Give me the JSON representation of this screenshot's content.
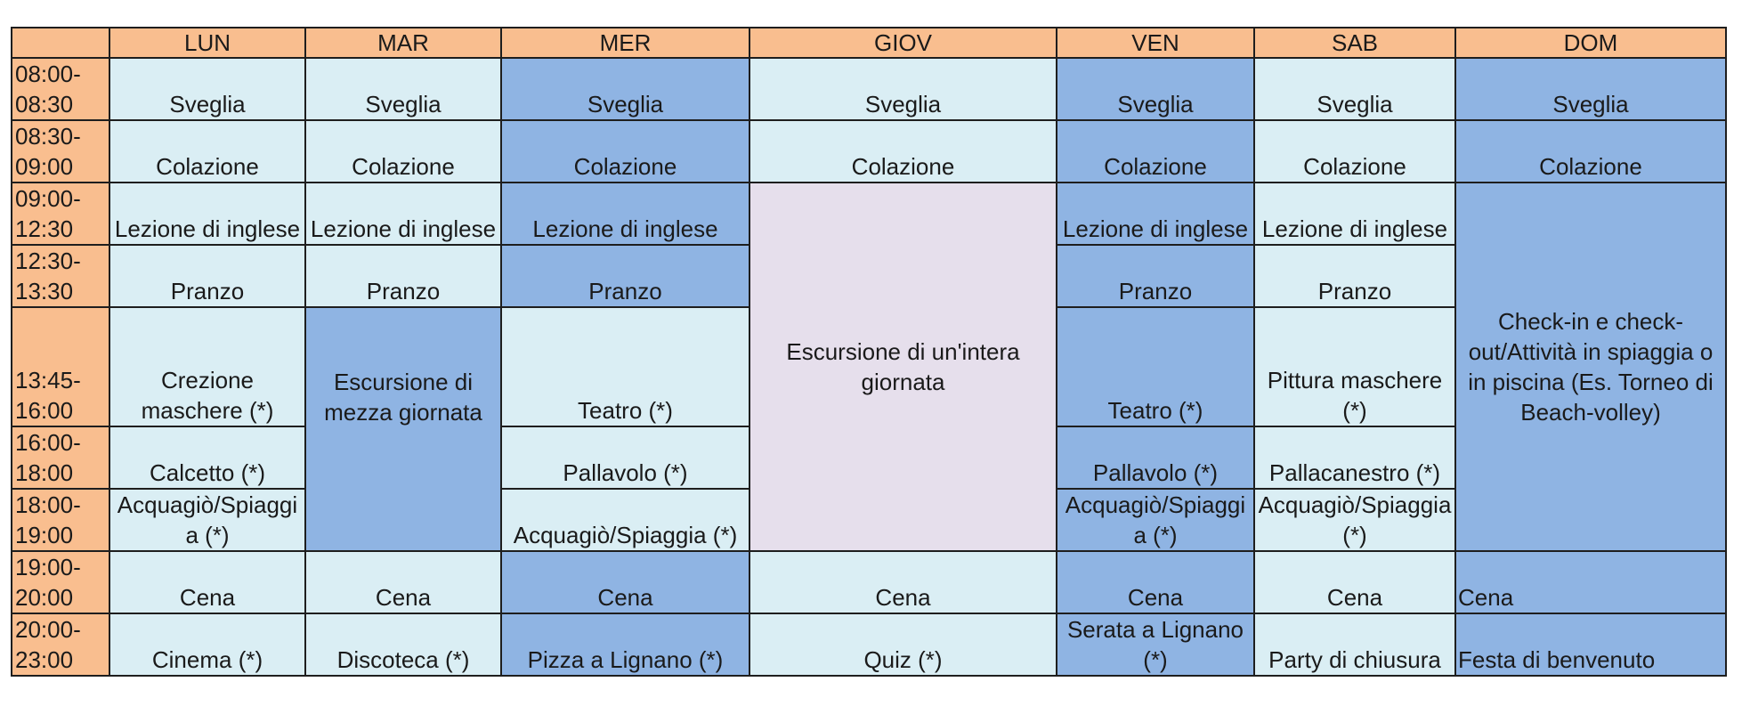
{
  "days": [
    "LUN",
    "MAR",
    "MER",
    "GIOV",
    "VEN",
    "SAB",
    "DOM"
  ],
  "times": [
    [
      "08:00-",
      "08:30"
    ],
    [
      "08:30-",
      "09:00"
    ],
    [
      "09:00-",
      "12:30"
    ],
    [
      "12:30-",
      "13:30"
    ],
    [
      "13:45-",
      "16:00"
    ],
    [
      "16:00-",
      "18:00"
    ],
    [
      "18:00-",
      "19:00"
    ],
    [
      "19:00-",
      "20:00"
    ],
    [
      "20:00-",
      "23:00"
    ]
  ],
  "colors": {
    "header": "#f9be8f",
    "light": "#daeef4",
    "blue": "#8fb4e3",
    "lavender": "#e6dfec"
  },
  "rows": [
    {
      "lun": "Sveglia",
      "mar": "Sveglia",
      "mer": "Sveglia",
      "giov": "Sveglia",
      "ven": "Sveglia",
      "sab": "Sveglia",
      "dom": "Sveglia"
    },
    {
      "lun": "Colazione",
      "mar": "Colazione",
      "mer": "Colazione",
      "giov": "Colazione",
      "ven": "Colazione",
      "sab": "Colazione",
      "dom": "Colazione"
    },
    {
      "lun": "Lezione di inglese",
      "mar": "Lezione di inglese",
      "mer": "Lezione di inglese",
      "ven": "Lezione di inglese",
      "sab": "Lezione di inglese"
    },
    {
      "lun": "Pranzo",
      "mar": "Pranzo",
      "mer": "Pranzo",
      "ven": "Pranzo",
      "sab": "Pranzo"
    },
    {
      "lun": "Crezione maschere (*)",
      "mer": "Teatro (*)",
      "ven": "Teatro (*)",
      "sab": "Pittura maschere (*)"
    },
    {
      "lun": "Calcetto (*)",
      "mer": "Pallavolo (*)",
      "ven": "Pallavolo (*)",
      "sab": "Pallacanestro (*)"
    },
    {
      "lun": "Acquagiò/Spiaggia (*)",
      "mer": "Acquagiò/Spiaggia (*)",
      "ven": "Acquagiò/Spiaggia (*)",
      "sab": "Acquagiò/Spiaggia (*)"
    },
    {
      "lun": "Cena",
      "mar": "Cena",
      "mer": "Cena",
      "giov": "Cena",
      "ven": "Cena",
      "sab": "Cena",
      "dom": "Cena"
    },
    {
      "lun": "Cinema (*)",
      "mar": "Discoteca (*)",
      "mer": "Pizza a Lignano (*)",
      "giov": "Quiz (*)",
      "ven": "Serata a Lignano (*)",
      "sab": "Party di chiusura",
      "dom": "Festa di benvenuto"
    }
  ],
  "spans": {
    "mar_escursione": "Escursione di mezza giornata",
    "giov_escursione": "Escursione di un'intera giornata",
    "dom_checkin": "Check-in e check-out/Attività in spiaggia o in piscina (Es. Torneo di Beach-volley)"
  }
}
